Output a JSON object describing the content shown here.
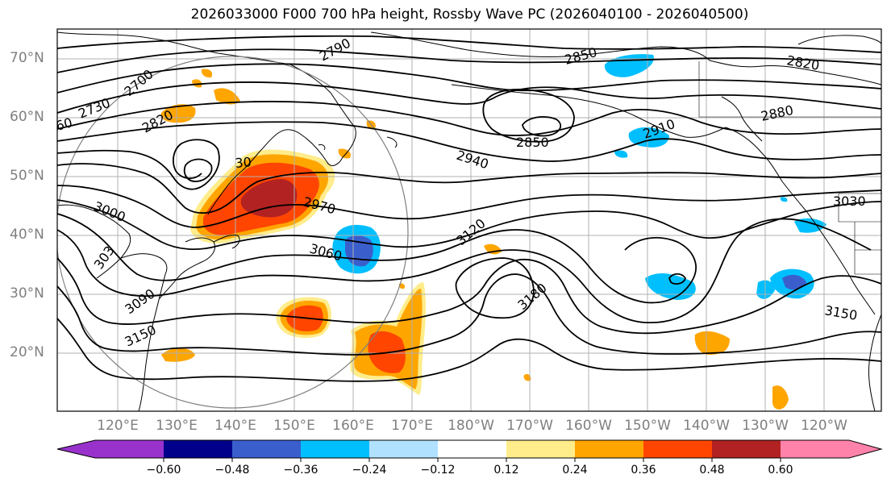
{
  "title": "2026033000 F000 700 hPa height, Rossby Wave PC (2026040100 - 2026040500)",
  "lat_labels": [
    "70°N",
    "60°N",
    "50°N",
    "40°N",
    "30°N",
    "20°N"
  ],
  "lon_labels": [
    "120°E",
    "130°E",
    "140°E",
    "150°E",
    "160°E",
    "170°E",
    "180°W",
    "170°W",
    "160°W",
    "150°W",
    "140°W",
    "130°W",
    "120°W"
  ],
  "contour_labels": [
    "2700",
    "2730",
    "60",
    "2790",
    "2820",
    "2850",
    "2850",
    "2820",
    "2880",
    "2910",
    "2940",
    "2970",
    "30",
    "3000",
    "303",
    "3060",
    "3090",
    "3120",
    "3150",
    "3180",
    "3150",
    "3030"
  ],
  "colorbar": {
    "ticks": [
      "−0.60",
      "−0.48",
      "−0.36",
      "−0.24",
      "−0.12",
      "0.12",
      "0.24",
      "0.36",
      "0.48",
      "0.60"
    ],
    "colors": [
      "#9932cc",
      "#00008b",
      "#3a5fcd",
      "#00bfff",
      "#b0e2ff",
      "#ffffff",
      "#ffec8b",
      "#ffa500",
      "#ff4500",
      "#b22222",
      "#ff82ab"
    ]
  }
}
